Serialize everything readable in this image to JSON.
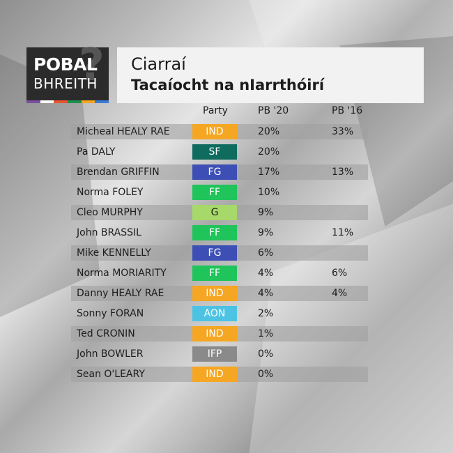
{
  "logo": {
    "line1": "POBAL",
    "line2": "BHREITH",
    "q_mark": "?",
    "stripe_colors": [
      "#7b4fa0",
      "#ffffff",
      "#e8542f",
      "#1d8f4e",
      "#f5a623",
      "#3b7bd6"
    ]
  },
  "header": {
    "title": "Ciarraí",
    "subtitle": "Tacaíocht na nIarrthóirí"
  },
  "columns": {
    "party": "Party",
    "pb20": "PB '20",
    "pb16": "PB '16"
  },
  "party_colors": {
    "IND": "#f5a623",
    "SF": "#0e6b5e",
    "FG": "#3d4fb5",
    "FF": "#1fc45a",
    "G": "#a6d96a",
    "AON": "#4dc3e3",
    "IFP": "#8a8a8a"
  },
  "rows": [
    {
      "name": "Micheal HEALY RAE",
      "party": "IND",
      "pb20": "20%",
      "pb16": "33%"
    },
    {
      "name": "Pa DALY",
      "party": "SF",
      "pb20": "20%",
      "pb16": ""
    },
    {
      "name": "Brendan GRIFFIN",
      "party": "FG",
      "pb20": "17%",
      "pb16": "13%"
    },
    {
      "name": "Norma FOLEY",
      "party": "FF",
      "pb20": "10%",
      "pb16": ""
    },
    {
      "name": "Cleo MURPHY",
      "party": "G",
      "pb20": "9%",
      "pb16": ""
    },
    {
      "name": "John BRASSIL",
      "party": "FF",
      "pb20": "9%",
      "pb16": "11%"
    },
    {
      "name": "Mike KENNELLY",
      "party": "FG",
      "pb20": "6%",
      "pb16": ""
    },
    {
      "name": "Norma MORIARITY",
      "party": "FF",
      "pb20": "4%",
      "pb16": "6%"
    },
    {
      "name": "Danny HEALY RAE",
      "party": "IND",
      "pb20": "4%",
      "pb16": "4%"
    },
    {
      "name": "Sonny FORAN",
      "party": "AON",
      "pb20": "2%",
      "pb16": ""
    },
    {
      "name": "Ted CRONIN",
      "party": "IND",
      "pb20": "1%",
      "pb16": ""
    },
    {
      "name": "John BOWLER",
      "party": "IFP",
      "pb20": "0%",
      "pb16": ""
    },
    {
      "name": "Sean O'LEARY",
      "party": "IND",
      "pb20": "0%",
      "pb16": ""
    }
  ]
}
